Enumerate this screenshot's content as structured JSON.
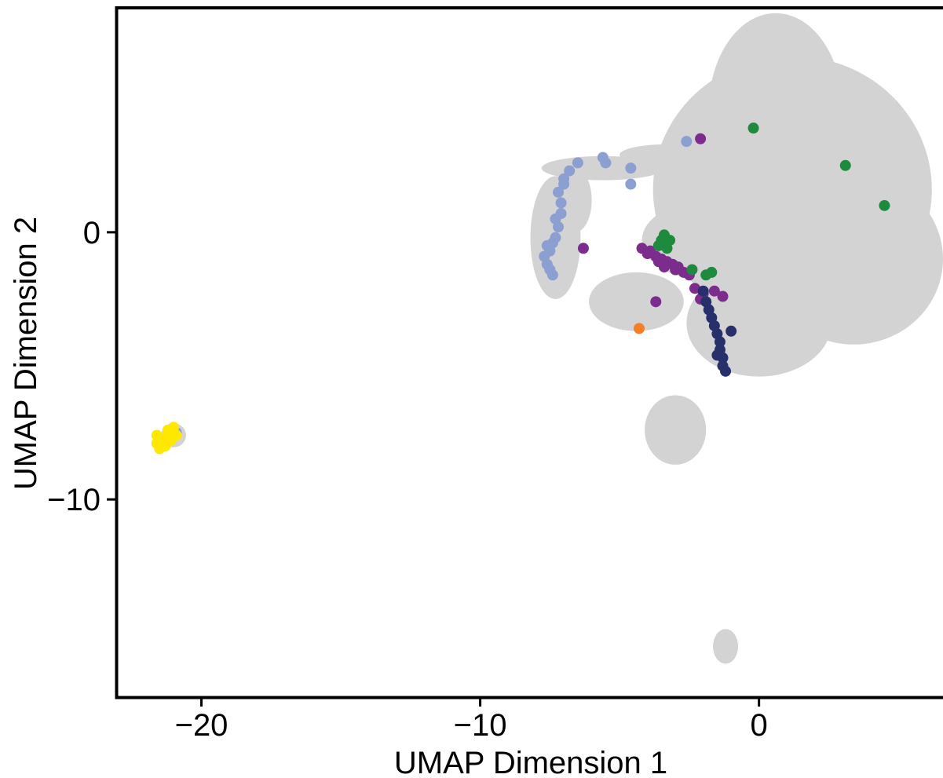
{
  "chart_data": {
    "type": "scatter",
    "xlabel": "UMAP Dimension 1",
    "ylabel": "UMAP Dimension 2",
    "xlim": [
      -23,
      6.6
    ],
    "ylim": [
      -17.4,
      8.4
    ],
    "x_ticks": [
      -20,
      -10,
      0
    ],
    "y_ticks": [
      0,
      -10
    ],
    "x_tick_labels": [
      "−20",
      "−10",
      "0"
    ],
    "y_tick_labels": [
      "0",
      "−10"
    ],
    "grid": false,
    "legend": "none",
    "background_color": "#d3d3d3",
    "background_regions": [
      {
        "shape": "ellipse",
        "cx": 1.2,
        "cy": 1.6,
        "rx": 5.0,
        "ry": 5.0
      },
      {
        "shape": "ellipse",
        "cx": 0.6,
        "cy": 4.6,
        "rx": 2.4,
        "ry": 3.6
      },
      {
        "shape": "ellipse",
        "cx": 3.4,
        "cy": -1.0,
        "rx": 3.2,
        "ry": 3.2
      },
      {
        "shape": "ellipse",
        "cx": 0.0,
        "cy": -3.4,
        "rx": 2.6,
        "ry": 2.0
      },
      {
        "shape": "ellipse",
        "cx": -1.8,
        "cy": -0.3,
        "rx": 2.4,
        "ry": 1.5
      },
      {
        "shape": "ellipse",
        "cx": -4.4,
        "cy": -2.6,
        "rx": 1.7,
        "ry": 1.1
      },
      {
        "shape": "ellipse",
        "cx": -5.6,
        "cy": 2.4,
        "rx": 2.2,
        "ry": 0.45
      },
      {
        "shape": "ellipse",
        "cx": -3.2,
        "cy": 2.9,
        "rx": 1.8,
        "ry": 0.4
      },
      {
        "shape": "ellipse",
        "cx": -7.3,
        "cy": -0.2,
        "rx": 0.9,
        "ry": 2.3
      },
      {
        "shape": "ellipse",
        "cx": -6.6,
        "cy": 1.2,
        "rx": 0.6,
        "ry": 1.2
      },
      {
        "shape": "ellipse",
        "cx": -3.0,
        "cy": -7.4,
        "rx": 1.1,
        "ry": 1.3
      },
      {
        "shape": "ellipse",
        "cx": -1.2,
        "cy": -15.5,
        "rx": 0.45,
        "ry": 0.65
      },
      {
        "shape": "ellipse",
        "cx": -21.0,
        "cy": -7.6,
        "rx": 0.45,
        "ry": 0.45
      }
    ],
    "series": [
      {
        "color": "#8b9fd1",
        "points": [
          [
            -7.7,
            -0.9
          ],
          [
            -7.6,
            -1.2
          ],
          [
            -7.5,
            -0.7
          ],
          [
            -7.4,
            -0.4
          ],
          [
            -7.5,
            -1.4
          ],
          [
            -7.3,
            -0.2
          ],
          [
            -7.2,
            0.2
          ],
          [
            -7.3,
            0.5
          ],
          [
            -7.1,
            1.1
          ],
          [
            -7.2,
            1.5
          ],
          [
            -7.0,
            1.8
          ],
          [
            -6.8,
            2.3
          ],
          [
            -6.5,
            2.6
          ],
          [
            -7.4,
            -1.6
          ],
          [
            -7.6,
            -0.5
          ],
          [
            -5.6,
            2.8
          ],
          [
            -5.5,
            2.6
          ],
          [
            -4.6,
            2.4
          ],
          [
            -4.6,
            1.8
          ],
          [
            -2.6,
            3.4
          ],
          [
            -20.9,
            -7.5
          ],
          [
            -7.1,
            0.7
          ],
          [
            -7.0,
            2.0
          ]
        ]
      },
      {
        "color": "#7b2c8c",
        "points": [
          [
            -6.3,
            -0.6
          ],
          [
            -4.2,
            -0.6
          ],
          [
            -3.9,
            -0.7
          ],
          [
            -3.7,
            -0.9
          ],
          [
            -3.5,
            -1.0
          ],
          [
            -3.3,
            -1.1
          ],
          [
            -3.1,
            -1.2
          ],
          [
            -2.9,
            -1.3
          ],
          [
            -2.7,
            -1.5
          ],
          [
            -2.5,
            -1.6
          ],
          [
            -3.6,
            -1.1
          ],
          [
            -3.4,
            -1.3
          ],
          [
            -2.3,
            -2.1
          ],
          [
            -2.0,
            -2.3
          ],
          [
            -1.6,
            -2.2
          ],
          [
            -1.3,
            -2.4
          ],
          [
            -2.1,
            -2.5
          ],
          [
            -3.7,
            -2.6
          ],
          [
            -2.1,
            3.5
          ],
          [
            -4.0,
            -0.8
          ],
          [
            -3.0,
            -1.4
          ]
        ]
      },
      {
        "color": "#1e8a3e",
        "points": [
          [
            -0.2,
            3.9
          ],
          [
            3.1,
            2.5
          ],
          [
            4.5,
            1.0
          ],
          [
            -3.5,
            -0.3
          ],
          [
            -3.2,
            -0.3
          ],
          [
            -3.6,
            -0.5
          ],
          [
            -3.3,
            -0.6
          ],
          [
            -2.4,
            -1.4
          ],
          [
            -1.7,
            -1.5
          ],
          [
            -1.9,
            -1.6
          ],
          [
            -3.4,
            -0.1
          ]
        ]
      },
      {
        "color": "#27306b",
        "points": [
          [
            -2.0,
            -2.2
          ],
          [
            -1.9,
            -2.6
          ],
          [
            -1.8,
            -2.9
          ],
          [
            -1.7,
            -3.2
          ],
          [
            -1.6,
            -3.5
          ],
          [
            -1.5,
            -3.8
          ],
          [
            -1.4,
            -4.1
          ],
          [
            -1.4,
            -4.4
          ],
          [
            -1.3,
            -4.7
          ],
          [
            -1.3,
            -5.0
          ],
          [
            -1.2,
            -5.2
          ],
          [
            -1.0,
            -3.7
          ],
          [
            -1.5,
            -4.6
          ]
        ]
      },
      {
        "color": "#f47f2a",
        "points": [
          [
            -4.3,
            -3.6
          ]
        ]
      },
      {
        "color": "#ffe800",
        "points": [
          [
            -21.6,
            -7.9
          ],
          [
            -21.4,
            -7.7
          ],
          [
            -21.2,
            -7.6
          ],
          [
            -21.0,
            -7.5
          ],
          [
            -21.5,
            -8.1
          ],
          [
            -21.3,
            -7.9
          ],
          [
            -21.1,
            -7.8
          ],
          [
            -20.9,
            -7.6
          ],
          [
            -21.6,
            -7.6
          ],
          [
            -21.3,
            -8.0
          ],
          [
            -21.2,
            -7.4
          ],
          [
            -21.0,
            -7.3
          ]
        ]
      }
    ]
  }
}
